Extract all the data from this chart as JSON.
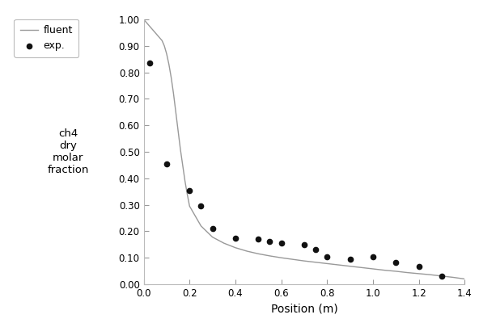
{
  "xlabel": "Position (m)",
  "ylabel": "ch4\ndry\nmolar\nfraction",
  "xlim": [
    0,
    1.4
  ],
  "ylim": [
    0.0,
    1.0
  ],
  "xticks": [
    0.0,
    0.2,
    0.4,
    0.6,
    0.8,
    1.0,
    1.2,
    1.4
  ],
  "yticks": [
    0.0,
    0.1,
    0.2,
    0.3,
    0.4,
    0.5,
    0.6,
    0.7,
    0.8,
    0.9,
    1.0
  ],
  "fluent_x": [
    0.0,
    0.005,
    0.01,
    0.02,
    0.03,
    0.04,
    0.05,
    0.06,
    0.07,
    0.08,
    0.09,
    0.1,
    0.11,
    0.12,
    0.13,
    0.14,
    0.15,
    0.16,
    0.17,
    0.18,
    0.19,
    0.2,
    0.25,
    0.3,
    0.35,
    0.4,
    0.45,
    0.5,
    0.55,
    0.6,
    0.65,
    0.7,
    0.75,
    0.8,
    0.85,
    0.9,
    0.95,
    1.0,
    1.05,
    1.1,
    1.15,
    1.2,
    1.25,
    1.3,
    1.35,
    1.4
  ],
  "fluent_y": [
    1.0,
    0.995,
    0.99,
    0.98,
    0.97,
    0.96,
    0.95,
    0.94,
    0.93,
    0.92,
    0.9,
    0.87,
    0.83,
    0.78,
    0.72,
    0.65,
    0.58,
    0.51,
    0.45,
    0.39,
    0.34,
    0.295,
    0.22,
    0.178,
    0.155,
    0.138,
    0.125,
    0.115,
    0.107,
    0.1,
    0.094,
    0.088,
    0.083,
    0.078,
    0.073,
    0.068,
    0.063,
    0.058,
    0.053,
    0.049,
    0.044,
    0.04,
    0.036,
    0.031,
    0.026,
    0.02
  ],
  "exp_x": [
    0.025,
    0.1,
    0.2,
    0.25,
    0.3,
    0.4,
    0.5,
    0.55,
    0.6,
    0.7,
    0.75,
    0.8,
    0.9,
    1.0,
    1.1,
    1.2,
    1.3
  ],
  "exp_y": [
    0.835,
    0.455,
    0.355,
    0.295,
    0.21,
    0.175,
    0.17,
    0.163,
    0.157,
    0.148,
    0.132,
    0.103,
    0.095,
    0.105,
    0.082,
    0.068,
    0.032
  ],
  "line_color": "#999999",
  "dot_color": "#111111",
  "background_color": "#ffffff",
  "legend_fluent": "fluent",
  "legend_exp": "exp.",
  "line_width": 1.0,
  "marker_size": 4.5
}
